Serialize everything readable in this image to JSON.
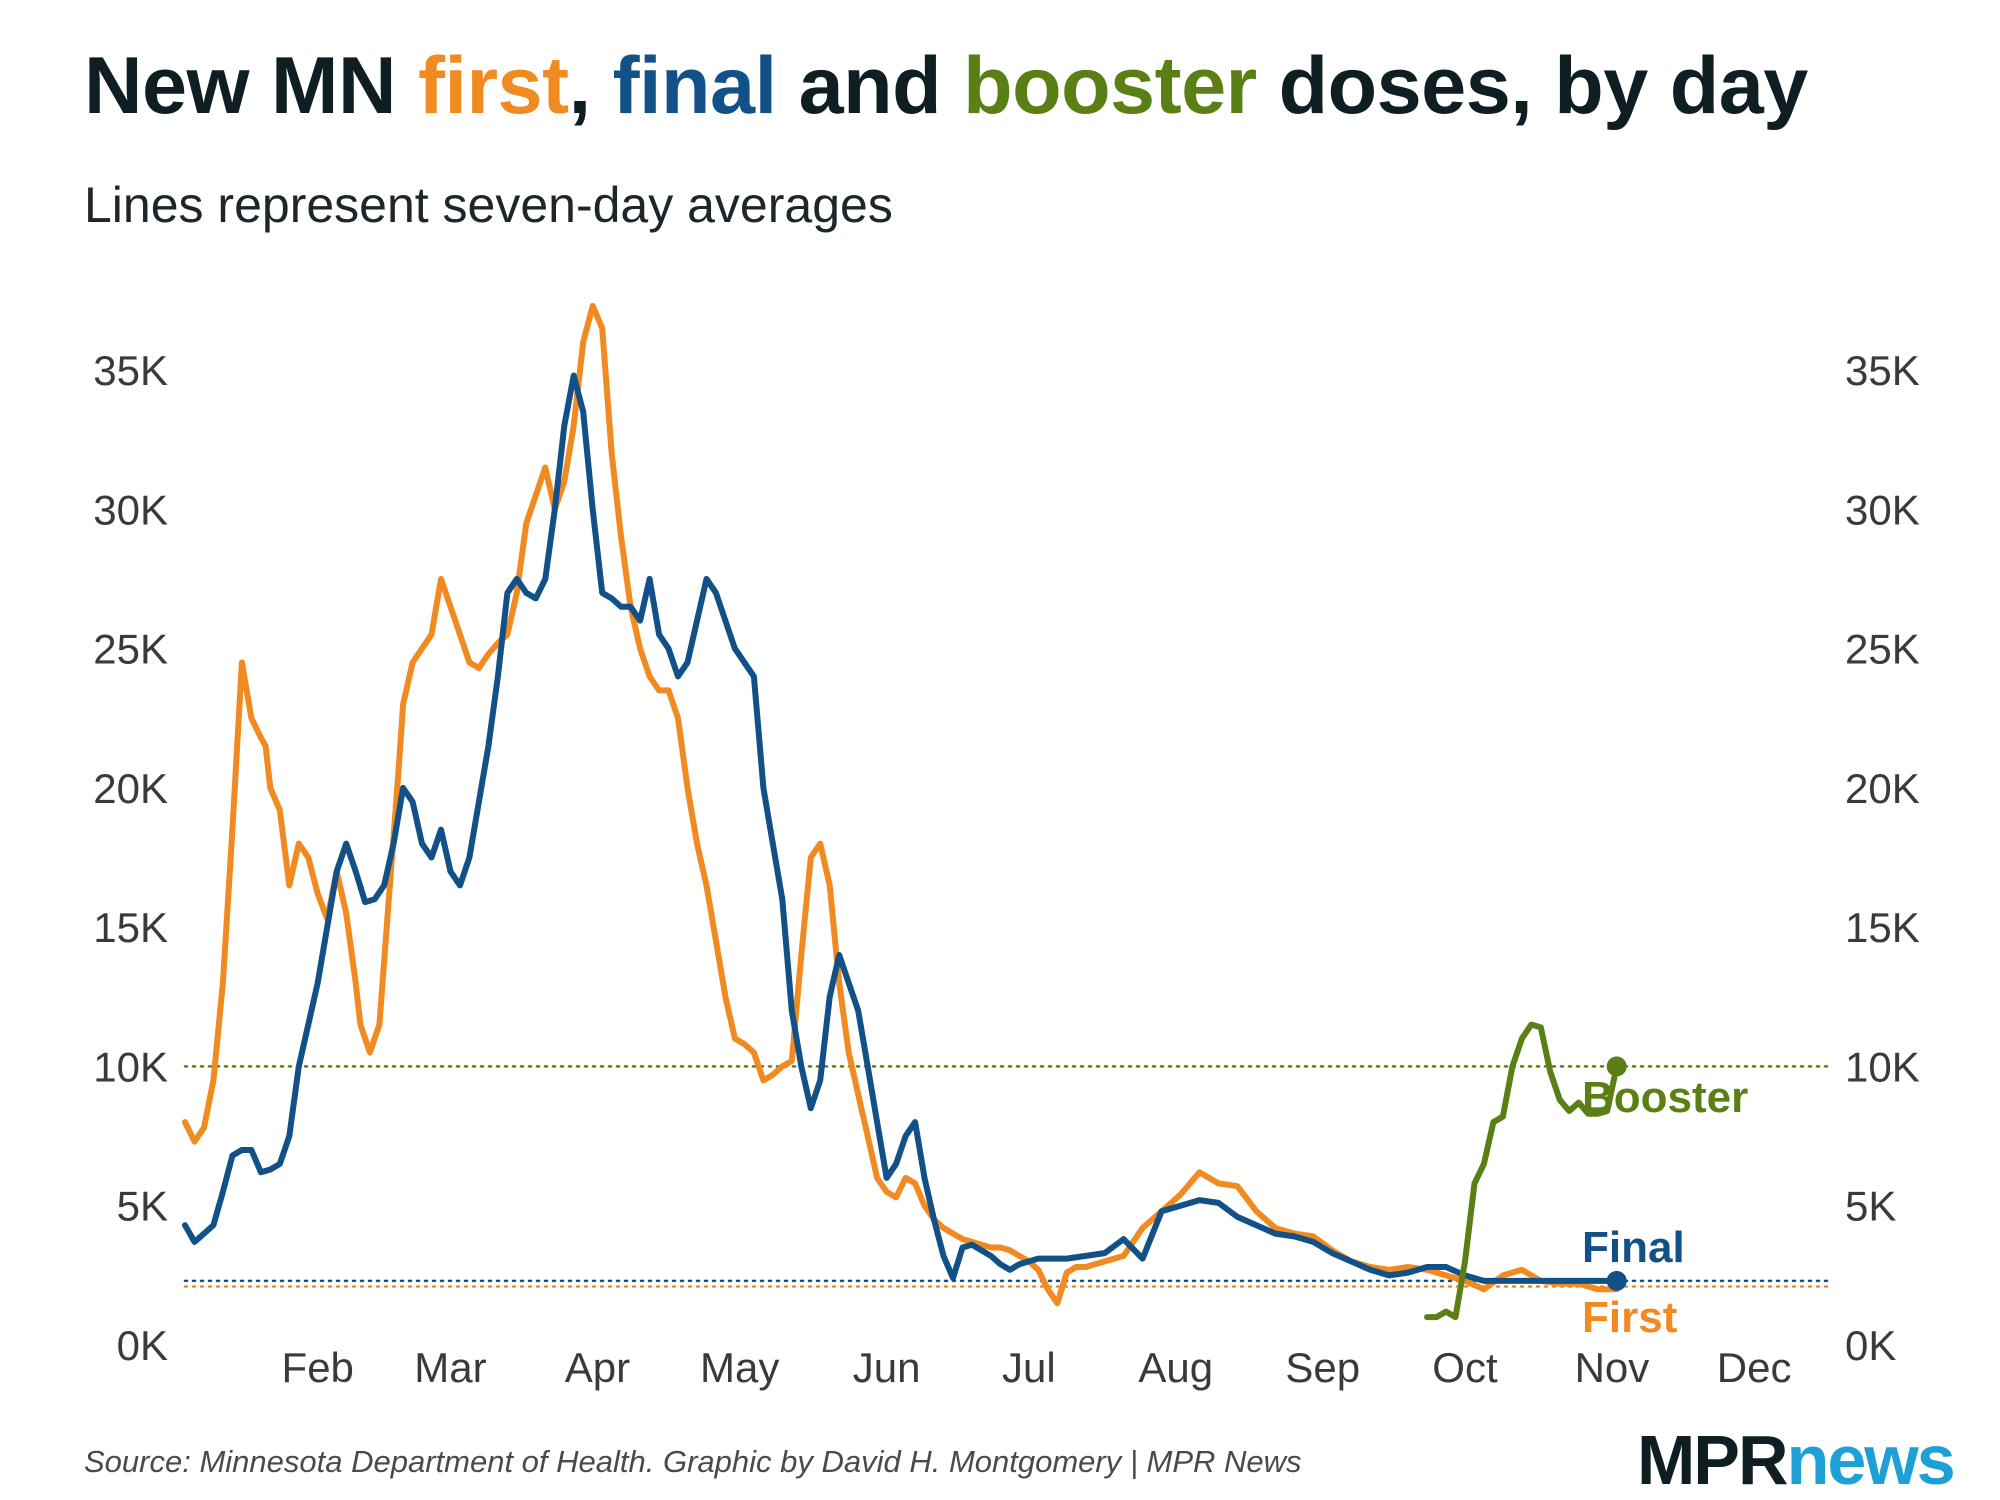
{
  "title": {
    "part1": "New MN ",
    "first": "first",
    "part2": ", ",
    "final": "final",
    "part3": " and ",
    "booster": "booster",
    "part4": " doses, by day"
  },
  "subtitle": "Lines represent seven-day averages",
  "source": "Source: Minnesota Department of Health. Graphic by David H. Montgomery | MPR News",
  "logo": {
    "mpr": "MPR",
    "news": "news"
  },
  "colors": {
    "first": "#f28a22",
    "final": "#125088",
    "booster": "#5a7f15",
    "text": "#0f1e23"
  },
  "chart_data": {
    "type": "line",
    "title": "New MN first, final and booster doses, by day",
    "subtitle": "Lines represent seven-day averages",
    "xlabel": "",
    "ylabel": "",
    "x_unit": "day of 2021",
    "x_ticks": [
      {
        "label": "Feb",
        "day": 46
      },
      {
        "label": "Mar",
        "day": 74
      },
      {
        "label": "Apr",
        "day": 105
      },
      {
        "label": "May",
        "day": 135
      },
      {
        "label": "Jun",
        "day": 166
      },
      {
        "label": "Jul",
        "day": 196
      },
      {
        "label": "Aug",
        "day": 227
      },
      {
        "label": "Sep",
        "day": 258
      },
      {
        "label": "Oct",
        "day": 288
      },
      {
        "label": "Nov",
        "day": 319
      },
      {
        "label": "Dec",
        "day": 349
      }
    ],
    "xlim": [
      18,
      365
    ],
    "y_ticks": [
      0,
      5000,
      10000,
      15000,
      20000,
      25000,
      30000,
      35000
    ],
    "y_tick_labels": [
      "0K",
      "5K",
      "10K",
      "15K",
      "20K",
      "25K",
      "30K",
      "35K"
    ],
    "ylim": [
      0,
      37500
    ],
    "grid": false,
    "axes": "left and right",
    "reference_lines": [
      {
        "series": "Booster",
        "value": 10000,
        "style": "dotted"
      },
      {
        "series": "Final",
        "value": 2300,
        "style": "dotted"
      },
      {
        "series": "First",
        "value": 2100,
        "style": "dotted"
      }
    ],
    "series": [
      {
        "name": "First",
        "end_label": "First",
        "x": [
          18,
          20,
          22,
          24,
          26,
          28,
          30,
          32,
          34,
          35,
          36,
          38,
          40,
          42,
          44,
          46,
          48,
          50,
          52,
          54,
          55,
          57,
          59,
          61,
          63,
          64,
          66,
          68,
          70,
          72,
          74,
          76,
          78,
          80,
          82,
          84,
          86,
          88,
          90,
          92,
          94,
          96,
          98,
          100,
          102,
          104,
          106,
          108,
          110,
          112,
          114,
          116,
          118,
          120,
          122,
          124,
          126,
          128,
          130,
          132,
          134,
          136,
          138,
          140,
          142,
          144,
          146,
          148,
          150,
          152,
          154,
          156,
          158,
          160,
          162,
          164,
          166,
          168,
          170,
          172,
          174,
          176,
          178,
          180,
          182,
          184,
          186,
          188,
          190,
          192,
          194,
          196,
          198,
          200,
          202,
          204,
          206,
          208,
          212,
          216,
          220,
          224,
          228,
          232,
          236,
          240,
          244,
          248,
          252,
          256,
          260,
          264,
          268,
          272,
          276,
          280,
          284,
          288,
          292,
          296,
          300,
          304,
          308,
          312,
          316,
          320
        ],
        "y": [
          8000,
          7300,
          7800,
          9500,
          13000,
          18500,
          24500,
          22500,
          21800,
          21500,
          20000,
          19200,
          16500,
          18000,
          17500,
          16200,
          15300,
          17000,
          15500,
          13000,
          11500,
          10500,
          11500,
          16000,
          20500,
          23000,
          24500,
          25000,
          25500,
          27500,
          26500,
          25500,
          24500,
          24300,
          24800,
          25200,
          25500,
          27000,
          29500,
          30500,
          31500,
          30000,
          31000,
          33000,
          36000,
          37300,
          36500,
          32000,
          29000,
          26500,
          25000,
          24000,
          23500,
          23500,
          22500,
          20000,
          18000,
          16500,
          14500,
          12500,
          11000,
          10800,
          10500,
          9500,
          9700,
          10000,
          10200,
          14000,
          17500,
          18000,
          16500,
          13000,
          10500,
          9000,
          7500,
          6000,
          5500,
          5300,
          6000,
          5800,
          5000,
          4500,
          4200,
          4000,
          3800,
          3700,
          3600,
          3500,
          3500,
          3400,
          3200,
          3000,
          2700,
          2000,
          1500,
          2600,
          2800,
          2800,
          3000,
          3200,
          4200,
          4800,
          5400,
          6200,
          5800,
          5700,
          4800,
          4200,
          4000,
          3900,
          3400,
          3000,
          2800,
          2700,
          2800,
          2700,
          2500,
          2300,
          2000,
          2500,
          2700,
          2300,
          2200,
          2200,
          2000,
          2000
        ]
      },
      {
        "name": "Final",
        "end_label": "Final",
        "x": [
          18,
          20,
          22,
          24,
          26,
          28,
          30,
          32,
          34,
          36,
          38,
          40,
          42,
          44,
          46,
          48,
          50,
          52,
          54,
          56,
          58,
          60,
          62,
          64,
          66,
          68,
          70,
          72,
          74,
          76,
          78,
          80,
          82,
          84,
          86,
          88,
          90,
          92,
          94,
          96,
          98,
          100,
          102,
          104,
          106,
          108,
          110,
          112,
          114,
          116,
          118,
          120,
          122,
          124,
          126,
          128,
          130,
          132,
          134,
          136,
          138,
          140,
          142,
          144,
          146,
          148,
          150,
          152,
          154,
          156,
          158,
          160,
          162,
          164,
          166,
          168,
          170,
          172,
          174,
          176,
          178,
          180,
          182,
          184,
          186,
          188,
          190,
          192,
          194,
          196,
          198,
          200,
          204,
          208,
          212,
          216,
          220,
          224,
          228,
          232,
          236,
          240,
          244,
          248,
          252,
          256,
          260,
          264,
          268,
          272,
          276,
          280,
          284,
          288,
          292,
          296,
          300,
          304,
          308,
          312,
          316,
          320
        ],
        "y": [
          4300,
          3700,
          4000,
          4300,
          5500,
          6800,
          7000,
          7000,
          6200,
          6300,
          6500,
          7500,
          10000,
          11500,
          13000,
          15000,
          17000,
          18000,
          17000,
          15900,
          16000,
          16500,
          18000,
          20000,
          19500,
          18000,
          17500,
          18500,
          17000,
          16500,
          17500,
          19500,
          21500,
          24000,
          27000,
          27500,
          27000,
          26800,
          27500,
          30000,
          33000,
          34800,
          33500,
          30000,
          27000,
          26800,
          26500,
          26500,
          26000,
          27500,
          25500,
          25000,
          24000,
          24500,
          26000,
          27500,
          27000,
          26000,
          25000,
          24500,
          24000,
          20000,
          18000,
          16000,
          12000,
          10000,
          8500,
          9500,
          12500,
          14000,
          13000,
          12000,
          10000,
          8000,
          6000,
          6500,
          7500,
          8000,
          6000,
          4500,
          3200,
          2400,
          3500,
          3600,
          3400,
          3200,
          2900,
          2700,
          2900,
          3000,
          3100,
          3100,
          3100,
          3200,
          3300,
          3800,
          3100,
          4800,
          5000,
          5200,
          5100,
          4600,
          4300,
          4000,
          3900,
          3700,
          3300,
          3000,
          2700,
          2500,
          2600,
          2800,
          2800,
          2500,
          2300,
          2300,
          2300,
          2300,
          2300,
          2300,
          2300,
          2300
        ]
      },
      {
        "name": "Booster",
        "end_label": "Booster",
        "x": [
          280,
          282,
          284,
          286,
          288,
          290,
          292,
          294,
          296,
          298,
          300,
          302,
          304,
          306,
          308,
          310,
          312,
          314,
          316,
          318,
          320
        ],
        "y": [
          1000,
          1000,
          1200,
          1000,
          3000,
          5800,
          6500,
          8000,
          8200,
          10000,
          11000,
          11500,
          11400,
          9800,
          8800,
          8400,
          8700,
          8300,
          8300,
          8400,
          10000
        ]
      }
    ]
  }
}
